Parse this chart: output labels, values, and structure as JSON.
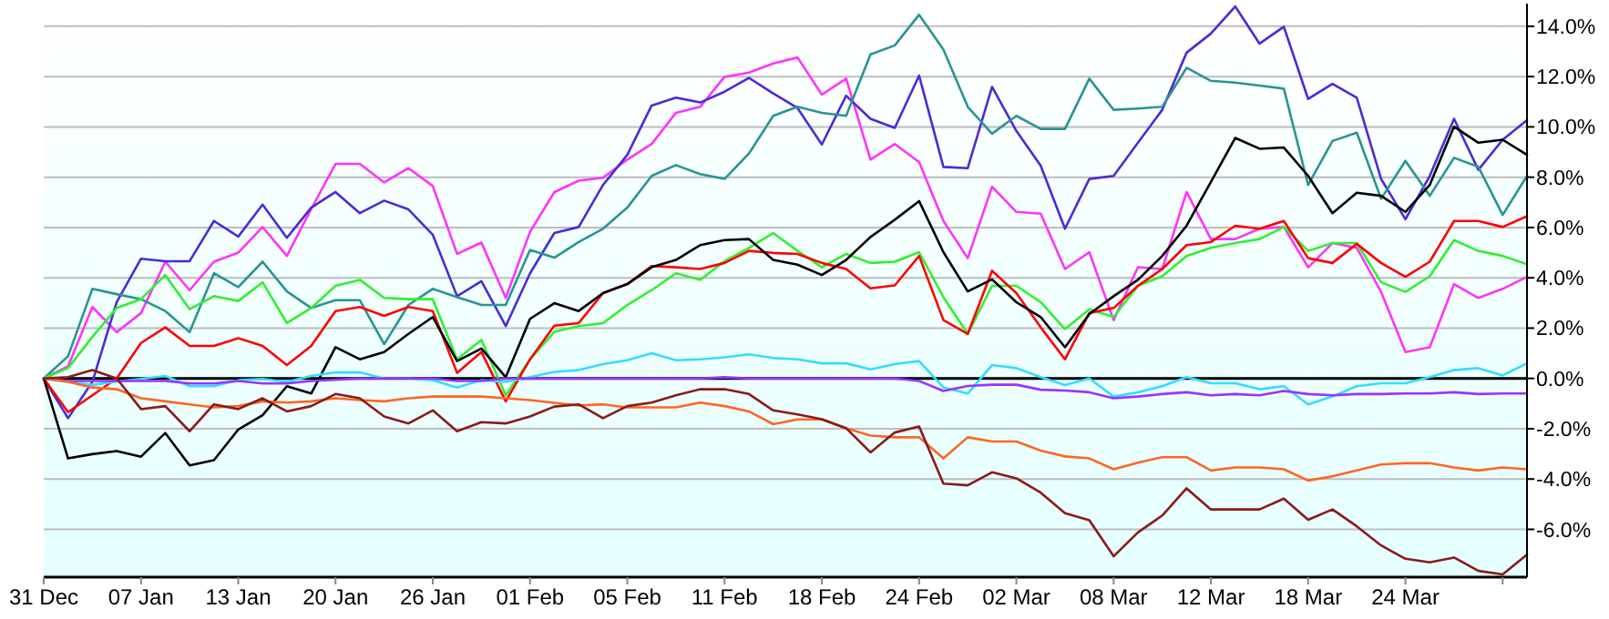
{
  "chart_data": {
    "type": "line",
    "categories": [
      "31 Dec",
      null,
      null,
      null,
      "07 Jan",
      null,
      null,
      null,
      "13 Jan",
      null,
      null,
      null,
      "20 Jan",
      null,
      null,
      null,
      "26 Jan",
      null,
      null,
      null,
      "01 Feb",
      null,
      null,
      null,
      "05 Feb",
      null,
      null,
      null,
      "11 Feb",
      null,
      null,
      null,
      "18 Feb",
      null,
      null,
      null,
      "24 Feb",
      null,
      null,
      null,
      "02 Mar",
      null,
      null,
      null,
      "08 Mar",
      null,
      null,
      null,
      "12 Mar",
      null,
      null,
      null,
      "18 Mar",
      null,
      null,
      null,
      "24 Mar",
      null,
      null,
      null,
      null,
      null
    ],
    "ylim": [
      -7.9,
      14.9
    ],
    "yticks": [
      {
        "value": -6,
        "label": "-6.0%"
      },
      {
        "value": -4,
        "label": "-4.0%"
      },
      {
        "value": -2,
        "label": "-2.0%"
      },
      {
        "value": 0,
        "label": "0.0%"
      },
      {
        "value": 2,
        "label": "2.0%"
      },
      {
        "value": 4,
        "label": "4.0%"
      },
      {
        "value": 6,
        "label": "6.0%"
      },
      {
        "value": 8,
        "label": "8.0%"
      },
      {
        "value": 10,
        "label": "10.0%"
      },
      {
        "value": 12,
        "label": "12.0%"
      },
      {
        "value": 14,
        "label": "14.0%"
      }
    ],
    "grid": "y",
    "marker": "none",
    "line_style": "solid",
    "ref_lines": [
      {
        "axis": "y",
        "value": 0,
        "color": "#000000"
      }
    ],
    "series": [
      {
        "color": "#ff33ff",
        "values": [
          0,
          0.48,
          2.84,
          1.84,
          2.6,
          4.64,
          3.51,
          4.64,
          5.0,
          6.02,
          4.87,
          6.74,
          8.53,
          8.53,
          7.79,
          8.36,
          7.65,
          4.95,
          5.4,
          3.2,
          5.83,
          7.41,
          7.86,
          7.98,
          8.7,
          9.32,
          10.56,
          10.8,
          11.99,
          12.16,
          12.52,
          12.76,
          11.28,
          11.92,
          8.7,
          9.32,
          8.6,
          6.26,
          4.78,
          7.62,
          6.62,
          6.55,
          4.35,
          5.02,
          2.32,
          4.42,
          4.35,
          7.41,
          5.54,
          5.54,
          5.95,
          6.02,
          4.42,
          5.38,
          5.19,
          3.44,
          1.05,
          1.24,
          3.75,
          3.2,
          3.56,
          4.04
        ]
      },
      {
        "color": "#4b2bd6",
        "values": [
          0,
          -1.58,
          -0.14,
          3.03,
          4.76,
          4.66,
          4.66,
          6.26,
          5.64,
          6.91,
          5.59,
          6.79,
          7.41,
          6.57,
          7.07,
          6.72,
          5.71,
          3.27,
          3.87,
          2.08,
          4.18,
          5.78,
          6.02,
          7.69,
          8.89,
          10.85,
          11.16,
          10.97,
          11.4,
          11.95,
          11.33,
          10.75,
          9.3,
          11.24,
          10.32,
          9.96,
          12.04,
          8.41,
          8.36,
          11.59,
          9.84,
          8.46,
          5.95,
          7.93,
          8.05,
          9.37,
          10.68,
          12.95,
          13.71,
          14.79,
          13.31,
          13.98,
          11.11,
          11.71,
          11.16,
          7.93,
          6.33,
          8.05,
          10.32,
          8.29,
          9.49,
          10.27
        ]
      },
      {
        "color": "#2a9494",
        "values": [
          0,
          0.88,
          3.56,
          3.35,
          3.15,
          2.68,
          1.84,
          4.18,
          3.63,
          4.64,
          3.46,
          2.8,
          3.11,
          3.11,
          1.36,
          2.92,
          3.56,
          3.23,
          2.92,
          2.92,
          5.11,
          4.8,
          5.42,
          5.95,
          6.79,
          8.05,
          8.48,
          8.12,
          7.93,
          8.94,
          10.44,
          10.8,
          10.56,
          10.44,
          12.88,
          13.24,
          14.46,
          13.07,
          10.8,
          9.73,
          10.44,
          9.92,
          9.92,
          11.92,
          10.68,
          10.73,
          10.8,
          12.35,
          11.83,
          11.76,
          11.64,
          11.52,
          7.69,
          9.44,
          9.77,
          7.14,
          8.65,
          7.26,
          8.77,
          8.41,
          6.5,
          8.05
        ]
      },
      {
        "color": "#33ee33",
        "values": [
          0,
          0.41,
          1.65,
          2.8,
          3.15,
          4.11,
          2.75,
          3.27,
          3.08,
          3.82,
          2.2,
          2.8,
          3.68,
          3.92,
          3.2,
          3.15,
          3.15,
          0.76,
          1.53,
          -0.67,
          0.76,
          1.85,
          2.08,
          2.2,
          2.92,
          3.51,
          4.18,
          3.92,
          4.66,
          5.19,
          5.78,
          5.07,
          4.42,
          4.95,
          4.59,
          4.64,
          5.02,
          3.23,
          1.77,
          3.68,
          3.68,
          3.03,
          1.96,
          2.75,
          2.44,
          3.68,
          4.06,
          4.87,
          5.19,
          5.38,
          5.54,
          6.02,
          5.07,
          5.38,
          5.38,
          3.82,
          3.44,
          4.06,
          5.5,
          5.07,
          4.87,
          4.54
        ]
      },
      {
        "color": "#ff0000",
        "values": [
          0,
          -1.34,
          -0.67,
          0,
          1.41,
          2.03,
          1.29,
          1.29,
          1.6,
          1.29,
          0.53,
          1.29,
          2.68,
          2.84,
          2.49,
          2.84,
          2.68,
          0.22,
          1.05,
          -0.91,
          0.76,
          2.1,
          2.2,
          3.39,
          3.75,
          4.47,
          4.42,
          4.35,
          4.59,
          5.07,
          4.99,
          4.95,
          4.59,
          4.35,
          3.58,
          3.7,
          4.87,
          2.32,
          1.77,
          4.28,
          3.39,
          2.03,
          0.76,
          2.6,
          2.8,
          3.68,
          4.35,
          5.3,
          5.42,
          6.07,
          5.95,
          6.26,
          4.78,
          4.59,
          5.35,
          4.59,
          4.04,
          4.64,
          6.26,
          6.26,
          6.02,
          6.45
        ]
      },
      {
        "color": "#000000",
        "values": [
          0,
          -3.18,
          -3.01,
          -2.89,
          -3.11,
          -2.17,
          -3.46,
          -3.25,
          -2.03,
          -1.46,
          -0.31,
          -0.6,
          1.24,
          0.76,
          1.05,
          1.77,
          2.44,
          0.69,
          1.19,
          0.05,
          2.37,
          2.99,
          2.68,
          3.39,
          3.75,
          4.42,
          4.71,
          5.3,
          5.5,
          5.54,
          4.71,
          4.52,
          4.11,
          4.71,
          5.62,
          6.31,
          7.05,
          5.02,
          3.46,
          3.94,
          3.03,
          2.44,
          1.24,
          2.56,
          3.27,
          3.92,
          4.87,
          6.07,
          7.81,
          9.56,
          9.13,
          9.18,
          8.05,
          6.57,
          7.38,
          7.26,
          6.62,
          7.69,
          10.01,
          9.37,
          9.49,
          8.89
        ]
      },
      {
        "color": "#33ddff",
        "values": [
          0,
          -0.14,
          -0.26,
          -0.12,
          -0.02,
          0.1,
          -0.31,
          -0.31,
          -0.07,
          -0.02,
          -0.14,
          0.1,
          0.24,
          0.24,
          0,
          0,
          -0.07,
          -0.36,
          -0.07,
          -0.14,
          0.05,
          0.26,
          0.33,
          0.57,
          0.72,
          1.0,
          0.72,
          0.76,
          0.84,
          0.96,
          0.81,
          0.76,
          0.6,
          0.6,
          0.36,
          0.57,
          0.69,
          -0.36,
          -0.6,
          0.53,
          0.41,
          0.05,
          -0.26,
          0,
          -0.72,
          -0.55,
          -0.31,
          0.05,
          -0.19,
          -0.19,
          -0.43,
          -0.31,
          -1.03,
          -0.72,
          -0.31,
          -0.19,
          -0.19,
          0.05,
          0.33,
          0.41,
          0.12,
          0.6
        ]
      },
      {
        "color": "#9933ff",
        "values": [
          0,
          -0.1,
          -0.1,
          -0.1,
          -0.1,
          -0.1,
          -0.2,
          -0.2,
          -0.1,
          -0.2,
          -0.2,
          -0.1,
          -0.05,
          0,
          0,
          0,
          0,
          -0.1,
          -0.1,
          0,
          0,
          0,
          0,
          0,
          0,
          0,
          0,
          0,
          0.05,
          0,
          0,
          0,
          0,
          0,
          0,
          0,
          -0.1,
          -0.5,
          -0.3,
          -0.25,
          -0.25,
          -0.45,
          -0.48,
          -0.55,
          -0.79,
          -0.72,
          -0.62,
          -0.55,
          -0.67,
          -0.62,
          -0.67,
          -0.5,
          -0.62,
          -0.67,
          -0.62,
          -0.62,
          -0.6,
          -0.6,
          -0.55,
          -0.62,
          -0.6,
          -0.6
        ]
      },
      {
        "color": "#ff6622",
        "values": [
          0,
          -0.14,
          -0.36,
          -0.43,
          -0.79,
          -0.91,
          -1.03,
          -1.15,
          -1.1,
          -0.91,
          -0.96,
          -0.91,
          -0.79,
          -0.86,
          -0.91,
          -0.79,
          -0.72,
          -0.72,
          -0.72,
          -0.79,
          -0.86,
          -0.97,
          -1.08,
          -1.03,
          -1.15,
          -1.15,
          -1.15,
          -0.96,
          -1.1,
          -1.31,
          -1.82,
          -1.63,
          -1.63,
          -1.98,
          -2.27,
          -2.34,
          -2.34,
          -3.18,
          -2.34,
          -2.51,
          -2.51,
          -2.87,
          -3.1,
          -3.18,
          -3.61,
          -3.35,
          -3.13,
          -3.13,
          -3.66,
          -3.54,
          -3.54,
          -3.61,
          -4.06,
          -3.89,
          -3.66,
          -3.42,
          -3.37,
          -3.37,
          -3.54,
          -3.66,
          -3.54,
          -3.61
        ]
      },
      {
        "color": "#8b1a1a",
        "values": [
          0,
          0.05,
          0.33,
          0,
          -1.22,
          -1.1,
          -2.1,
          -1.03,
          -1.22,
          -0.79,
          -1.31,
          -1.1,
          -0.62,
          -0.79,
          -1.51,
          -1.79,
          -1.27,
          -2.1,
          -1.74,
          -1.79,
          -1.51,
          -1.12,
          -1.03,
          -1.58,
          -1.1,
          -0.96,
          -0.67,
          -0.43,
          -0.43,
          -0.62,
          -1.27,
          -1.43,
          -1.62,
          -1.98,
          -2.94,
          -2.15,
          -1.91,
          -4.18,
          -4.25,
          -3.73,
          -3.97,
          -4.54,
          -5.36,
          -5.64,
          -7.07,
          -6.12,
          -5.45,
          -4.37,
          -5.21,
          -5.21,
          -5.21,
          -4.78,
          -5.62,
          -5.21,
          -5.88,
          -6.64,
          -7.17,
          -7.31,
          -7.12,
          -7.65,
          -7.79,
          -7.0
        ]
      }
    ]
  }
}
